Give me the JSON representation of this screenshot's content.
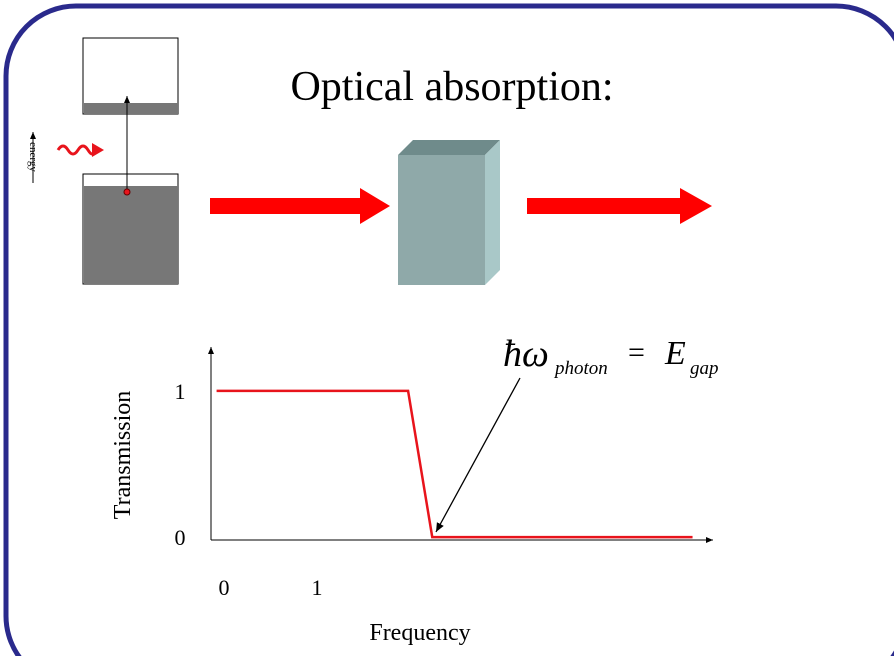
{
  "title": "Optical absorption:",
  "energy_label": "energy",
  "equation": {
    "symbol": "ħω",
    "symbol_sub": "photon",
    "equals": "=",
    "rhs": "E",
    "rhs_sub": "gap"
  },
  "chart_data": {
    "type": "line",
    "x_label": "Frequency",
    "y_label": "Transmission",
    "series": [
      {
        "color": "#e8141c",
        "x": [
          -0.08,
          1.98,
          2.24,
          5.04
        ],
        "values": [
          1,
          1,
          0,
          0
        ]
      }
    ],
    "xlim": [
      -0.14,
      5.26
    ],
    "ylim": [
      -0.02,
      1.3
    ],
    "xticks": [
      0,
      1
    ],
    "yticks": [
      0,
      1
    ]
  }
}
